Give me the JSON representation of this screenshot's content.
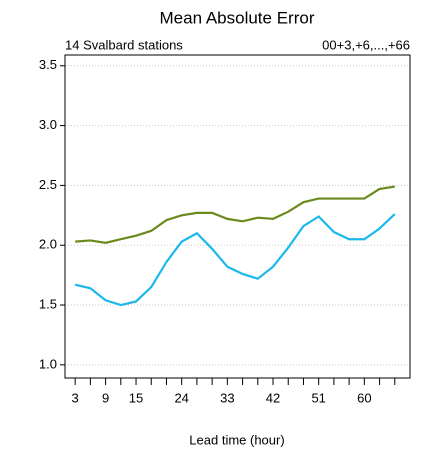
{
  "chart_data": {
    "type": "line",
    "title": "Mean Absolute Error",
    "subtitle_left": "14 Svalbard stations",
    "subtitle_right": "00+3,+6,...,+66",
    "x_label": "Lead time (hour)",
    "x": [
      3,
      6,
      9,
      12,
      15,
      18,
      21,
      24,
      27,
      30,
      33,
      36,
      39,
      42,
      45,
      48,
      51,
      54,
      57,
      60,
      63,
      66
    ],
    "series": [
      {
        "color": "#6b8a1e",
        "values": [
          2.03,
          2.04,
          2.02,
          2.05,
          2.08,
          2.12,
          2.21,
          2.25,
          2.27,
          2.27,
          2.22,
          2.2,
          2.23,
          2.22,
          2.28,
          2.36,
          2.39,
          2.39,
          2.39,
          2.39,
          2.47,
          2.49
        ]
      },
      {
        "color": "#1bb8ec",
        "values": [
          1.67,
          1.64,
          1.54,
          1.5,
          1.53,
          1.65,
          1.86,
          2.03,
          2.1,
          1.97,
          1.82,
          1.76,
          1.72,
          1.82,
          1.98,
          2.16,
          2.24,
          2.11,
          2.05,
          2.05,
          2.14,
          2.26
        ]
      }
    ],
    "xlim": [
      1,
      69
    ],
    "xticks": [
      3,
      9,
      15,
      24,
      33,
      42,
      51,
      60
    ],
    "ylim": [
      0.89,
      3.59
    ],
    "yticks": [
      {
        "value": 1,
        "label": "1.0"
      },
      1.5,
      {
        "value": 2,
        "label": "2.0"
      },
      2.5,
      {
        "value": 3,
        "label": "3.0"
      },
      3.5
    ],
    "grid": true
  }
}
